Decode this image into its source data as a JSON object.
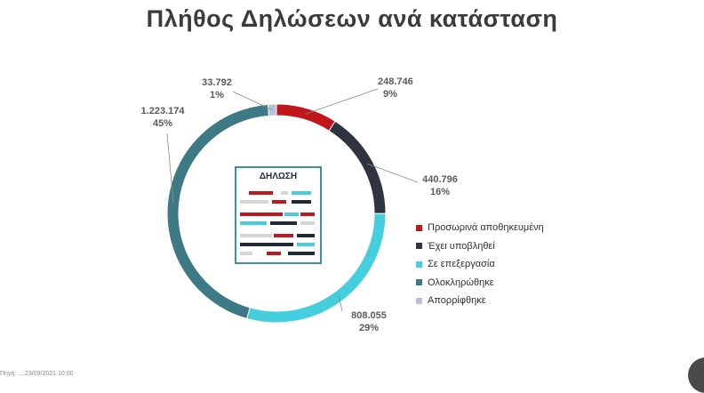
{
  "title": "Πλήθος Δηλώσεων ανά κατάσταση",
  "chart_data": {
    "type": "pie",
    "title": "Πλήθος Δηλώσεων ανά κατάσταση",
    "categories": [
      "Προσωρινά αποθηκευμένη",
      "Έχει υποβληθεί",
      "Σε επεξεργασία",
      "Ολοκληρώθηκε",
      "Απορρίφθηκε"
    ],
    "values": [
      248746,
      440796,
      808055,
      1223174,
      33792
    ],
    "value_labels": [
      "248.746",
      "440.796",
      "808.055",
      "1.223.174",
      "33.792"
    ],
    "percent_labels": [
      "9%",
      "16%",
      "29%",
      "45%",
      "1%"
    ],
    "colors": [
      "#c0161c",
      "#2f3440",
      "#45cedd",
      "#3d7a85",
      "#b9c1d9"
    ],
    "legend": "right",
    "style": "donut"
  },
  "icon": {
    "name": "document-icon",
    "label": "ΔΗΛΩΣΗ"
  },
  "footer": {
    "text": "Πηγή: ... 23/09/2021 10:00"
  }
}
